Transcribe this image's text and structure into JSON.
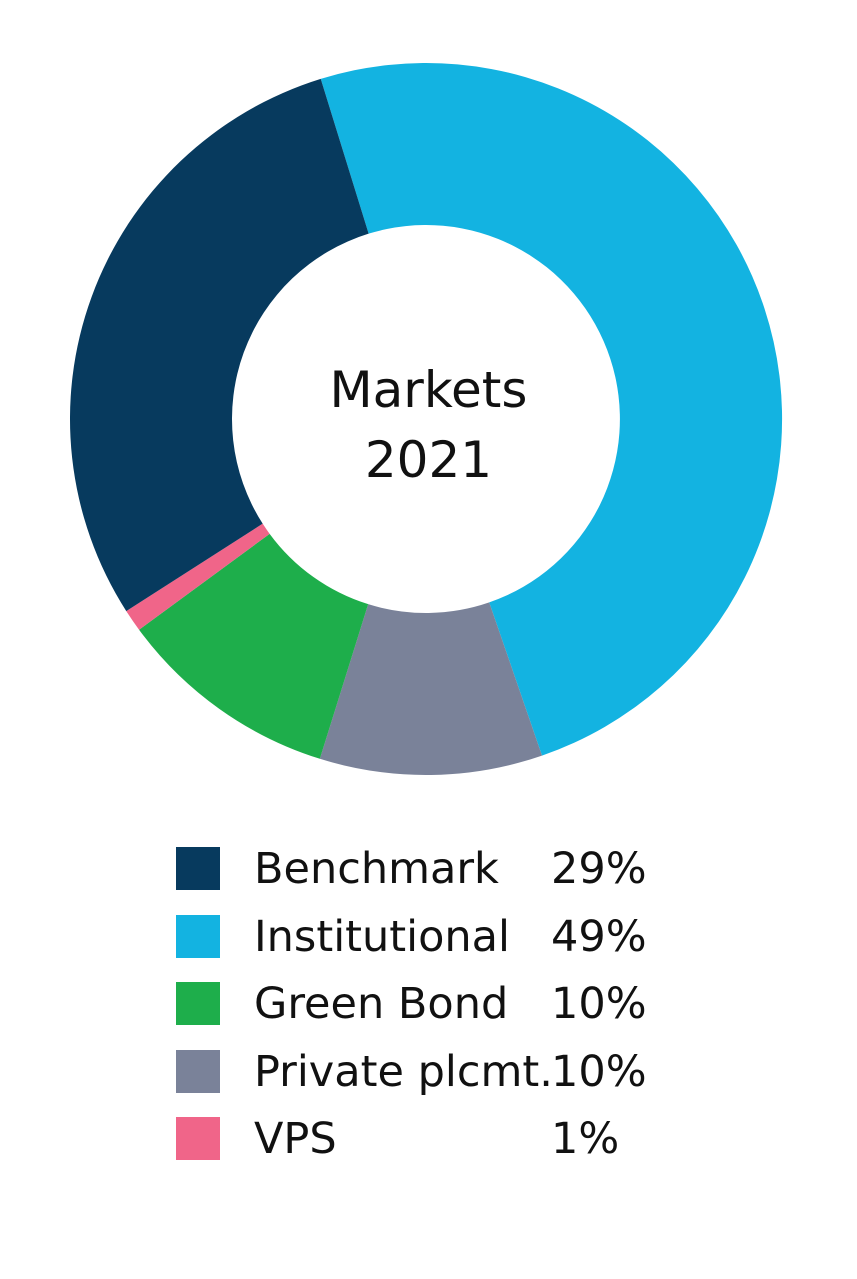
{
  "chart_data": {
    "type": "pie",
    "variant": "donut",
    "center_label": [
      "Markets",
      "2021"
    ],
    "slices": [
      {
        "name": "Benchmark",
        "value": 29,
        "label": "29%",
        "color": "#073a5e"
      },
      {
        "name": "Institutional",
        "value": 49,
        "label": "49%",
        "color": "#13b3e1"
      },
      {
        "name": "Green Bond",
        "value": 10,
        "label": "10%",
        "color": "#1eae4b"
      },
      {
        "name": "Private plcmt.",
        "value": 10,
        "label": "10%",
        "color": "#7a8299"
      },
      {
        "name": "VPS",
        "value": 1,
        "label": "1%",
        "color": "#f06589"
      }
    ],
    "legend_position": "bottom"
  }
}
